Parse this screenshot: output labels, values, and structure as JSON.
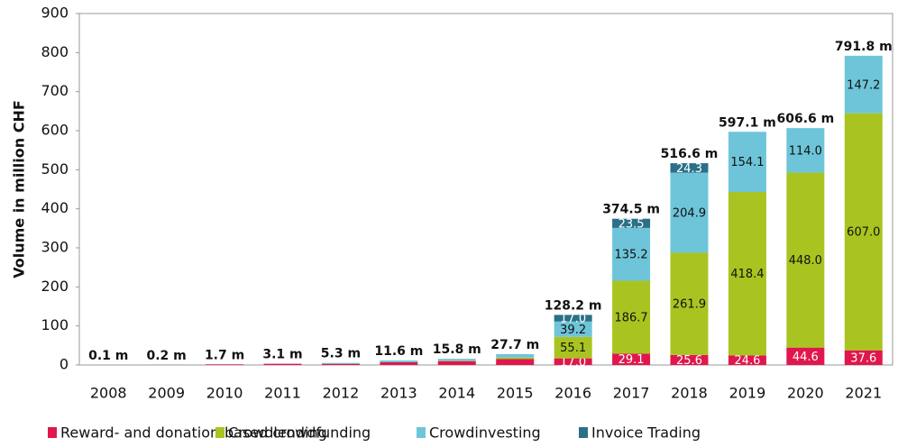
{
  "chart_data": {
    "type": "stacked_bar",
    "ylabel": "Volume in million CHF",
    "categories": [
      "2008",
      "2009",
      "2010",
      "2011",
      "2012",
      "2013",
      "2014",
      "2015",
      "2016",
      "2017",
      "2018",
      "2019",
      "2020",
      "2021"
    ],
    "series": [
      {
        "name": "Reward- and donation-based crowdfunding",
        "color": "#e0174d",
        "values": [
          0.1,
          0.2,
          1.7,
          3.1,
          3.0,
          7.0,
          10.0,
          15.0,
          17.0,
          29.1,
          25.6,
          24.6,
          44.6,
          37.6
        ],
        "value_labels": [
          null,
          null,
          null,
          null,
          null,
          null,
          null,
          null,
          "17.0",
          "29.1",
          "25.6",
          "24.6",
          "44.6",
          "37.6"
        ]
      },
      {
        "name": "Crowdlending",
        "color": "#a9c420",
        "values": [
          null,
          null,
          null,
          null,
          null,
          null,
          1.0,
          4.0,
          55.1,
          186.7,
          261.9,
          418.4,
          448.0,
          607.0
        ],
        "value_labels": [
          null,
          null,
          null,
          null,
          null,
          null,
          null,
          null,
          "55.1",
          "186.7",
          "261.9",
          "418.4",
          "448.0",
          "607.0"
        ]
      },
      {
        "name": "Crowdinvesting",
        "color": "#6ec5d9",
        "values": [
          null,
          null,
          null,
          null,
          2.3,
          4.6,
          4.8,
          8.7,
          39.2,
          135.2,
          204.9,
          154.1,
          114.0,
          147.2
        ],
        "value_labels": [
          null,
          null,
          null,
          null,
          null,
          null,
          null,
          null,
          "39.2",
          "135.2",
          "204.9",
          "154.1",
          "114.0",
          "147.2"
        ]
      },
      {
        "name": "Invoice Trading",
        "color": "#2a7087",
        "values": [
          null,
          null,
          null,
          null,
          null,
          null,
          null,
          null,
          17.0,
          23.5,
          24.3,
          null,
          null,
          null
        ],
        "value_labels": [
          null,
          null,
          null,
          null,
          null,
          null,
          null,
          null,
          "17.0",
          "23.5",
          "24.3",
          null,
          null,
          null
        ]
      }
    ],
    "totals": [
      0.1,
      0.2,
      1.7,
      3.1,
      5.3,
      11.6,
      15.8,
      27.7,
      128.2,
      374.5,
      516.6,
      597.1,
      606.6,
      791.8
    ],
    "total_labels": [
      "0.1 m",
      "0.2 m",
      "1.7 m",
      "3.1 m",
      "5.3 m",
      "11.6 m",
      "15.8 m",
      "27.7 m",
      "128.2 m",
      "374.5 m",
      "516.6 m",
      "597.1 m",
      "606.6 m",
      "791.8 m"
    ],
    "ylim": [
      0,
      900
    ],
    "yticks": [
      0,
      100,
      200,
      300,
      400,
      500,
      600,
      700,
      800,
      900
    ]
  }
}
